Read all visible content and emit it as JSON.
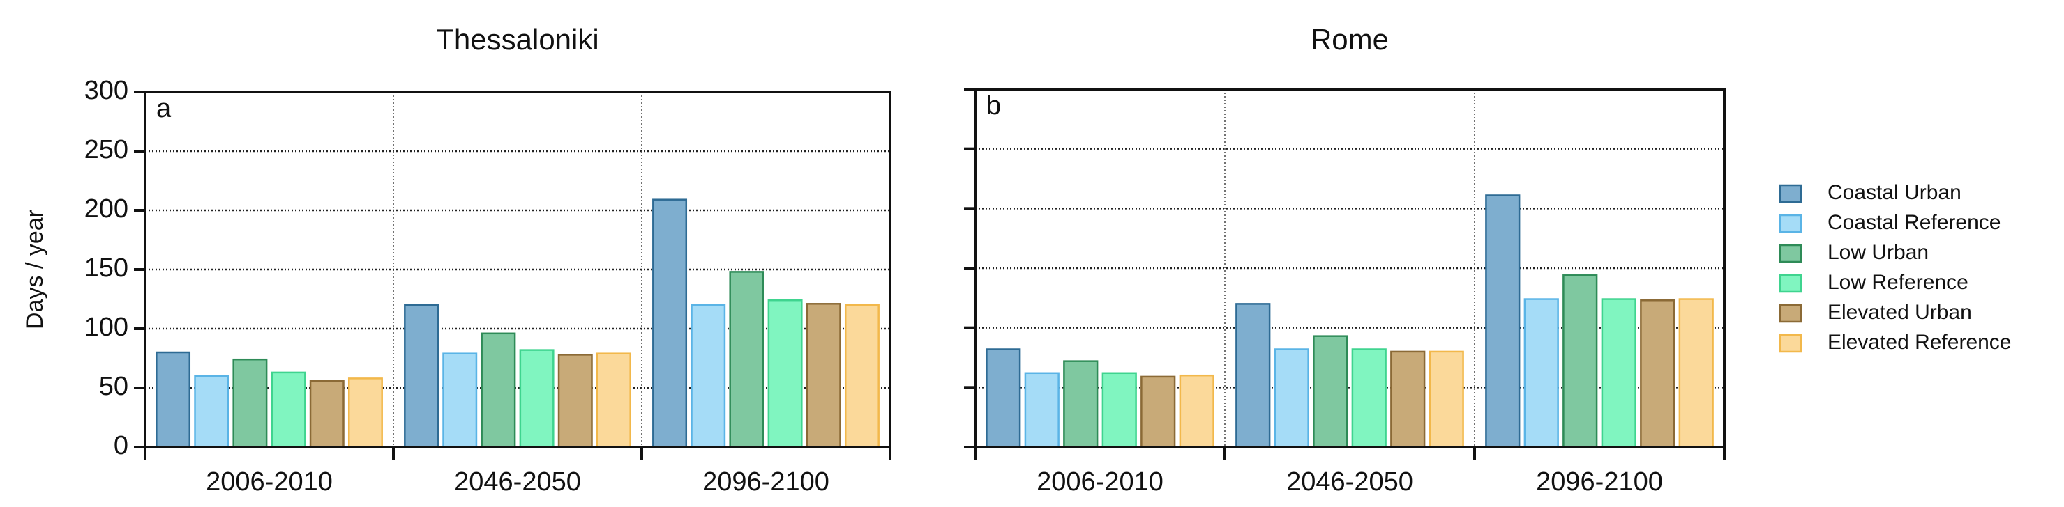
{
  "chart_data": [
    {
      "type": "bar",
      "title": "Thessaloniki",
      "panel_label": "a",
      "y_label": "Days / year",
      "categories": [
        "2006-2010",
        "2046-2050",
        "2096-2100"
      ],
      "series": [
        {
          "color": "#7eaecf",
          "edge_color": "#2e6b94",
          "values": [
            80,
            120,
            209
          ]
        },
        {
          "color": "#a5dcf7",
          "edge_color": "#5ab4e6",
          "values": [
            60,
            79,
            120
          ]
        },
        {
          "color": "#7fc8a0",
          "edge_color": "#2e8b57",
          "values": [
            74,
            96,
            148
          ]
        },
        {
          "color": "#80f5c0",
          "edge_color": "#3fd48f",
          "values": [
            63,
            82,
            124
          ]
        },
        {
          "color": "#c8aa78",
          "edge_color": "#8b6a36",
          "values": [
            56,
            78,
            121
          ]
        },
        {
          "color": "#fbd99a",
          "edge_color": "#f2b84b",
          "values": [
            58,
            79,
            120
          ]
        }
      ],
      "ylim": [
        0,
        300
      ],
      "yticks": [
        0,
        50,
        100,
        150,
        200,
        250,
        300
      ],
      "show_ytick_labels": true,
      "grid": true
    },
    {
      "type": "bar",
      "title": "Rome",
      "panel_label": "b",
      "legend": "right",
      "categories": [
        "2006-2010",
        "2046-2050",
        "2096-2100"
      ],
      "series": [
        {
          "name": "Coastal Urban",
          "color": "#7eaecf",
          "edge_color": "#2e6b94",
          "values": [
            82,
            120,
            211
          ]
        },
        {
          "name": "Coastal Reference",
          "color": "#a5dcf7",
          "edge_color": "#5ab4e6",
          "values": [
            62,
            82,
            124
          ]
        },
        {
          "name": "Low Urban",
          "color": "#7fc8a0",
          "edge_color": "#2e8b57",
          "values": [
            72,
            93,
            144
          ]
        },
        {
          "name": "Low Reference",
          "color": "#80f5c0",
          "edge_color": "#3fd48f",
          "values": [
            62,
            82,
            124
          ]
        },
        {
          "name": "Elevated Urban",
          "color": "#c8aa78",
          "edge_color": "#8b6a36",
          "values": [
            59,
            80,
            123
          ]
        },
        {
          "name": "Elevated Reference",
          "color": "#fbd99a",
          "edge_color": "#f2b84b",
          "values": [
            60,
            80,
            124
          ]
        }
      ],
      "ylim": [
        0,
        300
      ],
      "yticks": [
        0,
        50,
        100,
        150,
        200,
        250,
        300
      ],
      "show_ytick_labels": false,
      "grid": true
    }
  ]
}
